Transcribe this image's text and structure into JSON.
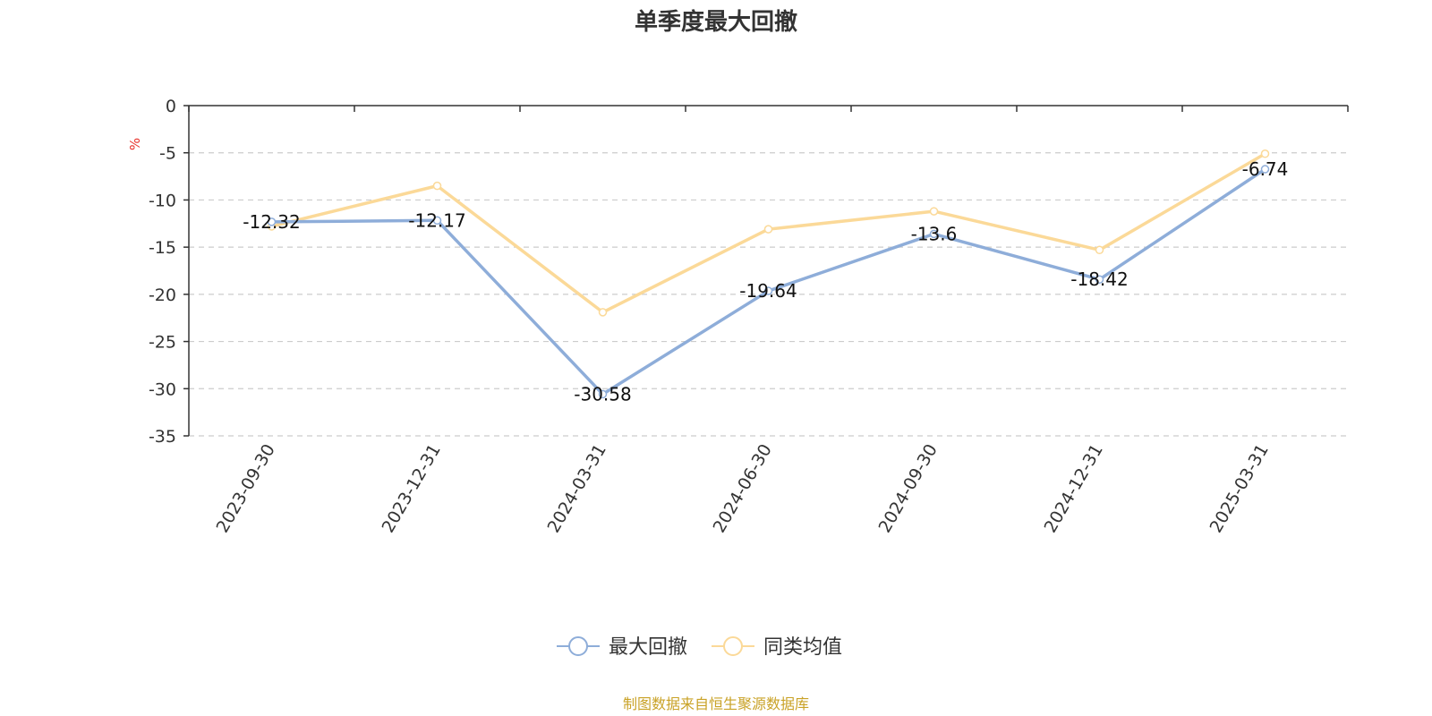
{
  "chart_data": {
    "type": "line",
    "title": "单季度最大回撤",
    "ylabel": "%",
    "ylim": [
      -35,
      0
    ],
    "yticks": [
      0,
      -5,
      -10,
      -15,
      -20,
      -25,
      -30,
      -35
    ],
    "grid": true,
    "legend_position": "bottom",
    "categories": [
      "2023-09-30",
      "2023-12-31",
      "2024-03-31",
      "2024-06-30",
      "2024-09-30",
      "2024-12-31",
      "2025-03-31"
    ],
    "series": [
      {
        "name": "最大回撤",
        "color": "#8eadd9",
        "values": [
          -12.32,
          -12.17,
          -30.58,
          -19.64,
          -13.6,
          -18.42,
          -6.74
        ],
        "labels": [
          "-12.32",
          "-12.17",
          "-30.58",
          "-19.64",
          "-13.6",
          "-18.42",
          "-6.74"
        ]
      },
      {
        "name": "同类均值",
        "color": "#fbd998",
        "values": [
          -12.8,
          -8.5,
          -21.9,
          -13.1,
          -11.2,
          -15.3,
          -5.1
        ]
      }
    ],
    "unit_color": "#e8322b"
  },
  "footer": {
    "source": "制图数据来自恒生聚源数据库",
    "color": "#c9a227"
  }
}
